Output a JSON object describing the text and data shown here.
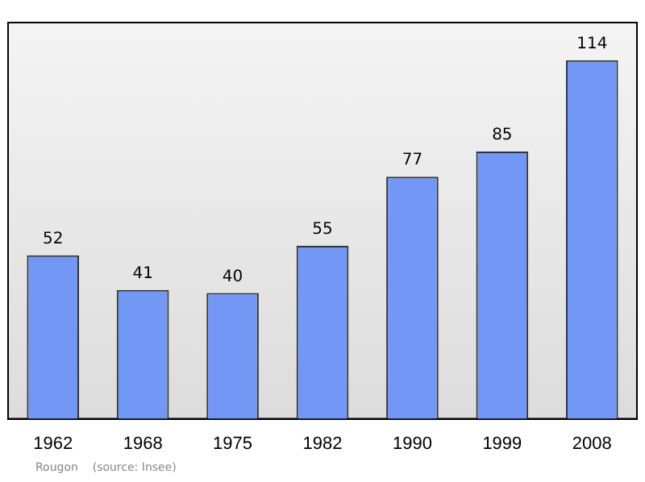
{
  "chart_data": {
    "type": "bar",
    "categories": [
      "1962",
      "1968",
      "1975",
      "1982",
      "1990",
      "1999",
      "2008"
    ],
    "values": [
      52,
      41,
      40,
      55,
      77,
      85,
      114
    ],
    "color": "#7397f5",
    "ylim": [
      0,
      126
    ],
    "data_labels": true,
    "grid": false,
    "legend": false,
    "tick_labels": "x",
    "annotations": [
      "Rougon    (source: Insee)"
    ]
  }
}
